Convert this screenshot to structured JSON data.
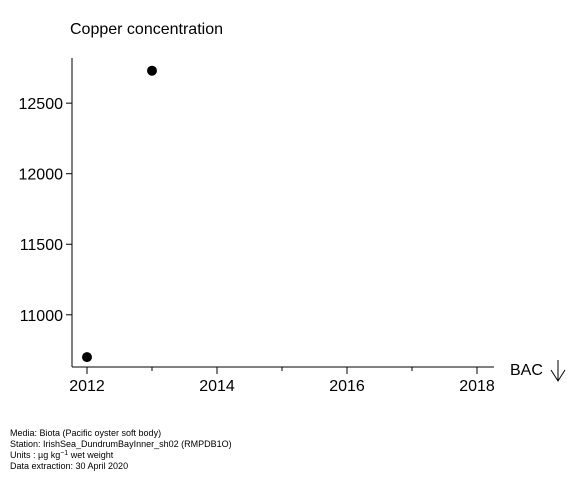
{
  "chart_data": {
    "type": "scatter",
    "title": "Copper concentration",
    "xlabel": "",
    "ylabel": "",
    "x_ticks": [
      2012,
      2014,
      2016,
      2018
    ],
    "y_ticks": [
      11000,
      11500,
      12000,
      12500
    ],
    "xlim": [
      2011.9,
      2018.1
    ],
    "ylim": [
      10630,
      12820
    ],
    "grid": false,
    "points": [
      {
        "x": 2012,
        "y": 10700
      },
      {
        "x": 2013,
        "y": 12730
      }
    ],
    "threshold_label": "BAC",
    "threshold_indicator": "down-arrow",
    "marker_color": "#000000"
  },
  "footer": {
    "media": "Media: Biota (Pacific oyster soft body)",
    "station": "Station: IrishSea_DundrumBayInner_sh02 (RMPDB1O)",
    "units_prefix": "Units : µg kg",
    "units_sup": "−1",
    "units_suffix": " wet weight",
    "extraction": "Data extraction: 30 April 2020"
  }
}
